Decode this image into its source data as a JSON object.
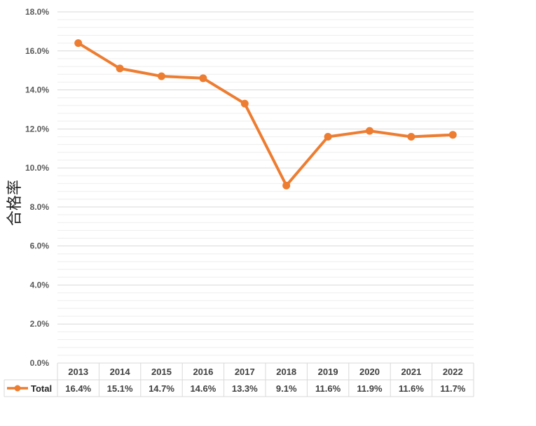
{
  "chart_data": {
    "type": "line",
    "title": "",
    "xlabel": "",
    "ylabel": "合格率",
    "categories": [
      "2013",
      "2014",
      "2015",
      "2016",
      "2017",
      "2018",
      "2019",
      "2020",
      "2021",
      "2022"
    ],
    "series": [
      {
        "name": "Total",
        "color": "#ED7D31",
        "values": [
          16.4,
          15.1,
          14.7,
          14.6,
          13.3,
          9.1,
          11.6,
          11.9,
          11.6,
          11.7
        ],
        "labels": [
          "16.4%",
          "15.1%",
          "14.7%",
          "14.6%",
          "13.3%",
          "9.1%",
          "11.6%",
          "11.9%",
          "11.6%",
          "11.7%"
        ]
      }
    ],
    "ylim": [
      0,
      18
    ],
    "yticks": [
      0,
      2,
      4,
      6,
      8,
      10,
      12,
      14,
      16,
      18
    ],
    "ytick_labels": [
      "0.0%",
      "2.0%",
      "4.0%",
      "6.0%",
      "8.0%",
      "10.0%",
      "12.0%",
      "14.0%",
      "16.0%",
      "18.0%"
    ],
    "grid": true,
    "legend": "data-table-left"
  }
}
